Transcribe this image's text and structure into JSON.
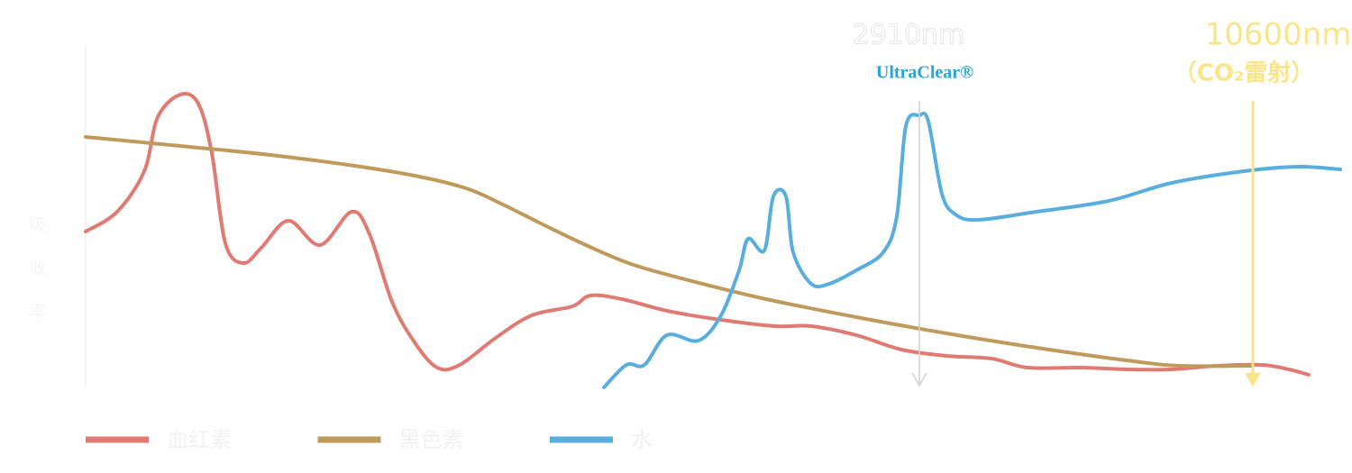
{
  "chart_data": {
    "type": "line",
    "y_label": "吸收率",
    "xlim": [
      0,
      1395
    ],
    "ylim": [
      0,
      380
    ],
    "grid": false,
    "series": [
      {
        "name": "血红素",
        "color": "#e07b74",
        "x": [
          0,
          35,
          65,
          80,
          105,
          125,
          140,
          155,
          175,
          195,
          225,
          260,
          295,
          315,
          340,
          365,
          390,
          415,
          455,
          495,
          540,
          560,
          595,
          645,
          705,
          765,
          805,
          855,
          905,
          955,
          1005,
          1045,
          1105,
          1155,
          1205,
          1255,
          1305,
          1335,
          1357
        ],
        "values": [
          173,
          195,
          240,
          300,
          325,
          315,
          260,
          160,
          138,
          155,
          185,
          158,
          195,
          170,
          95,
          50,
          22,
          25,
          55,
          80,
          90,
          102,
          98,
          85,
          75,
          68,
          68,
          58,
          42,
          35,
          32,
          22,
          22,
          20,
          20,
          24,
          25,
          20,
          14
        ]
      },
      {
        "name": "黑色素",
        "color": "#c09a5b",
        "x": [
          0,
          105,
          205,
          305,
          375,
          425,
          465,
          505,
          555,
          605,
          665,
          755,
          855,
          955,
          1055,
          1155,
          1215,
          1295
        ],
        "values": [
          278,
          268,
          258,
          245,
          233,
          220,
          202,
          182,
          158,
          137,
          120,
          98,
          78,
          60,
          44,
          30,
          24,
          24
        ]
      },
      {
        "name": "水",
        "color": "#5aaede",
        "x": [
          575,
          600,
          620,
          645,
          680,
          705,
          725,
          735,
          753,
          763,
          777,
          785,
          805,
          825,
          855,
          885,
          900,
          910,
          925,
          935,
          950,
          965,
          990,
          1055,
          1135,
          1205,
          1285,
          1345,
          1392
        ],
        "values": [
          0,
          25,
          25,
          58,
          52,
          80,
          130,
          165,
          152,
          212,
          212,
          150,
          115,
          115,
          130,
          150,
          190,
          290,
          302,
          295,
          215,
          192,
          186,
          195,
          207,
          227,
          240,
          245,
          242
        ]
      }
    ],
    "annotations": [
      {
        "x": 925,
        "text": "2910nm",
        "sub": "UltraClear®",
        "color": "#d0d0d0",
        "text_color": "#ffffff",
        "sub_color": "#2aa5d8"
      },
      {
        "x": 1295,
        "text": "10600nm",
        "sub": "（CO₂雷射）",
        "color": "#f8e58c",
        "text_color": "#f8e58c",
        "sub_color": "#f8e58c"
      }
    ]
  }
}
